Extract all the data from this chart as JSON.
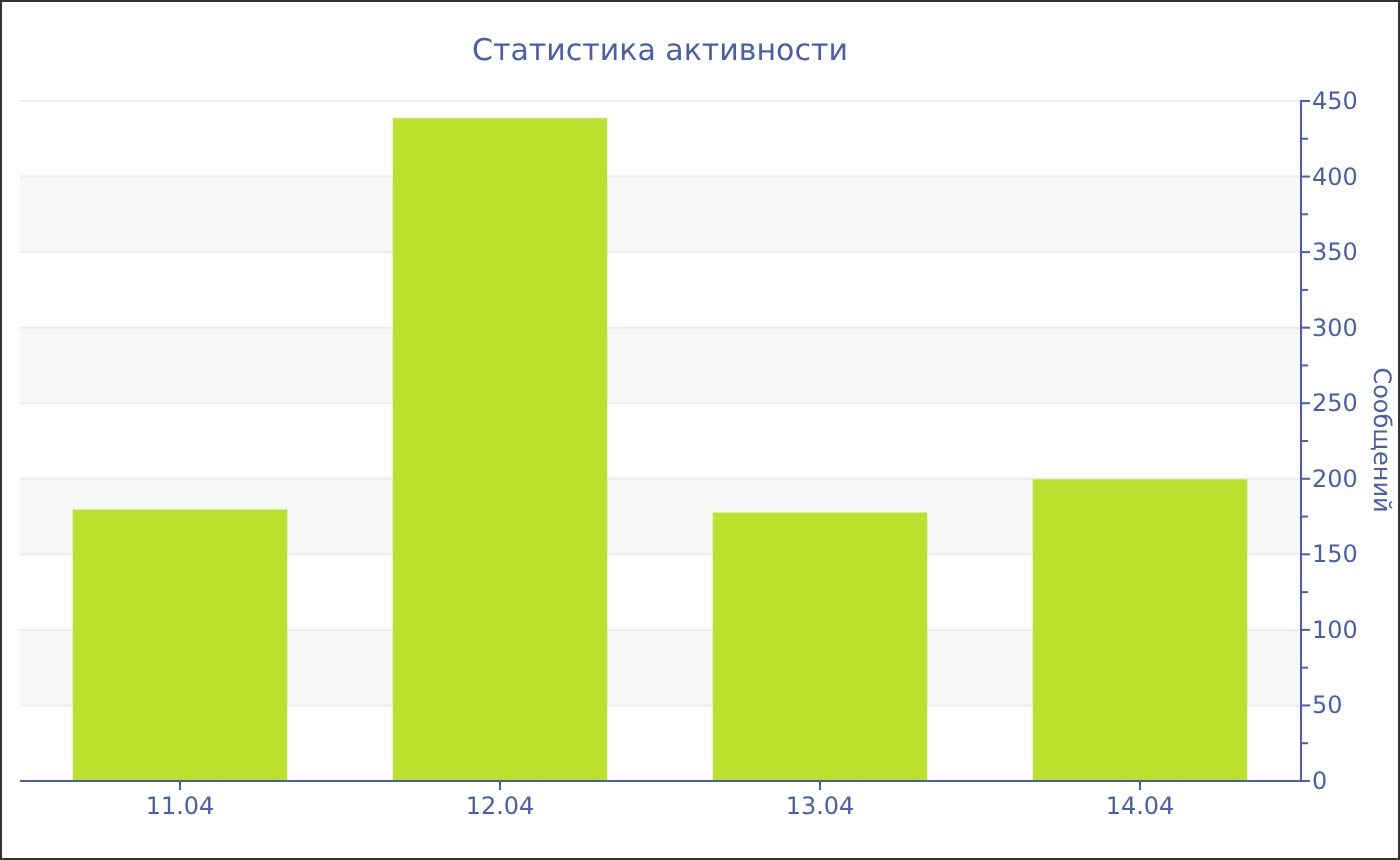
{
  "chart_data": {
    "type": "bar",
    "title": "Статистика активности",
    "ylabel": "Сообщений",
    "categories": [
      "11.04",
      "12.04",
      "13.04",
      "14.04"
    ],
    "values": [
      179,
      438,
      177,
      199
    ],
    "color": "#bce02e",
    "ylim": [
      0,
      450
    ],
    "yticks": [
      0,
      {
        "value": 25,
        "label": null
      },
      50,
      {
        "value": 75,
        "label": null
      },
      100,
      {
        "value": 125,
        "label": null
      },
      150,
      {
        "value": 175,
        "label": null
      },
      200,
      {
        "value": 225,
        "label": null
      },
      250,
      {
        "value": 275,
        "label": null
      },
      300,
      {
        "value": 325,
        "label": null
      },
      350,
      {
        "value": 375,
        "label": null
      },
      400,
      {
        "value": 425,
        "label": null
      },
      450
    ],
    "grid": "y"
  }
}
